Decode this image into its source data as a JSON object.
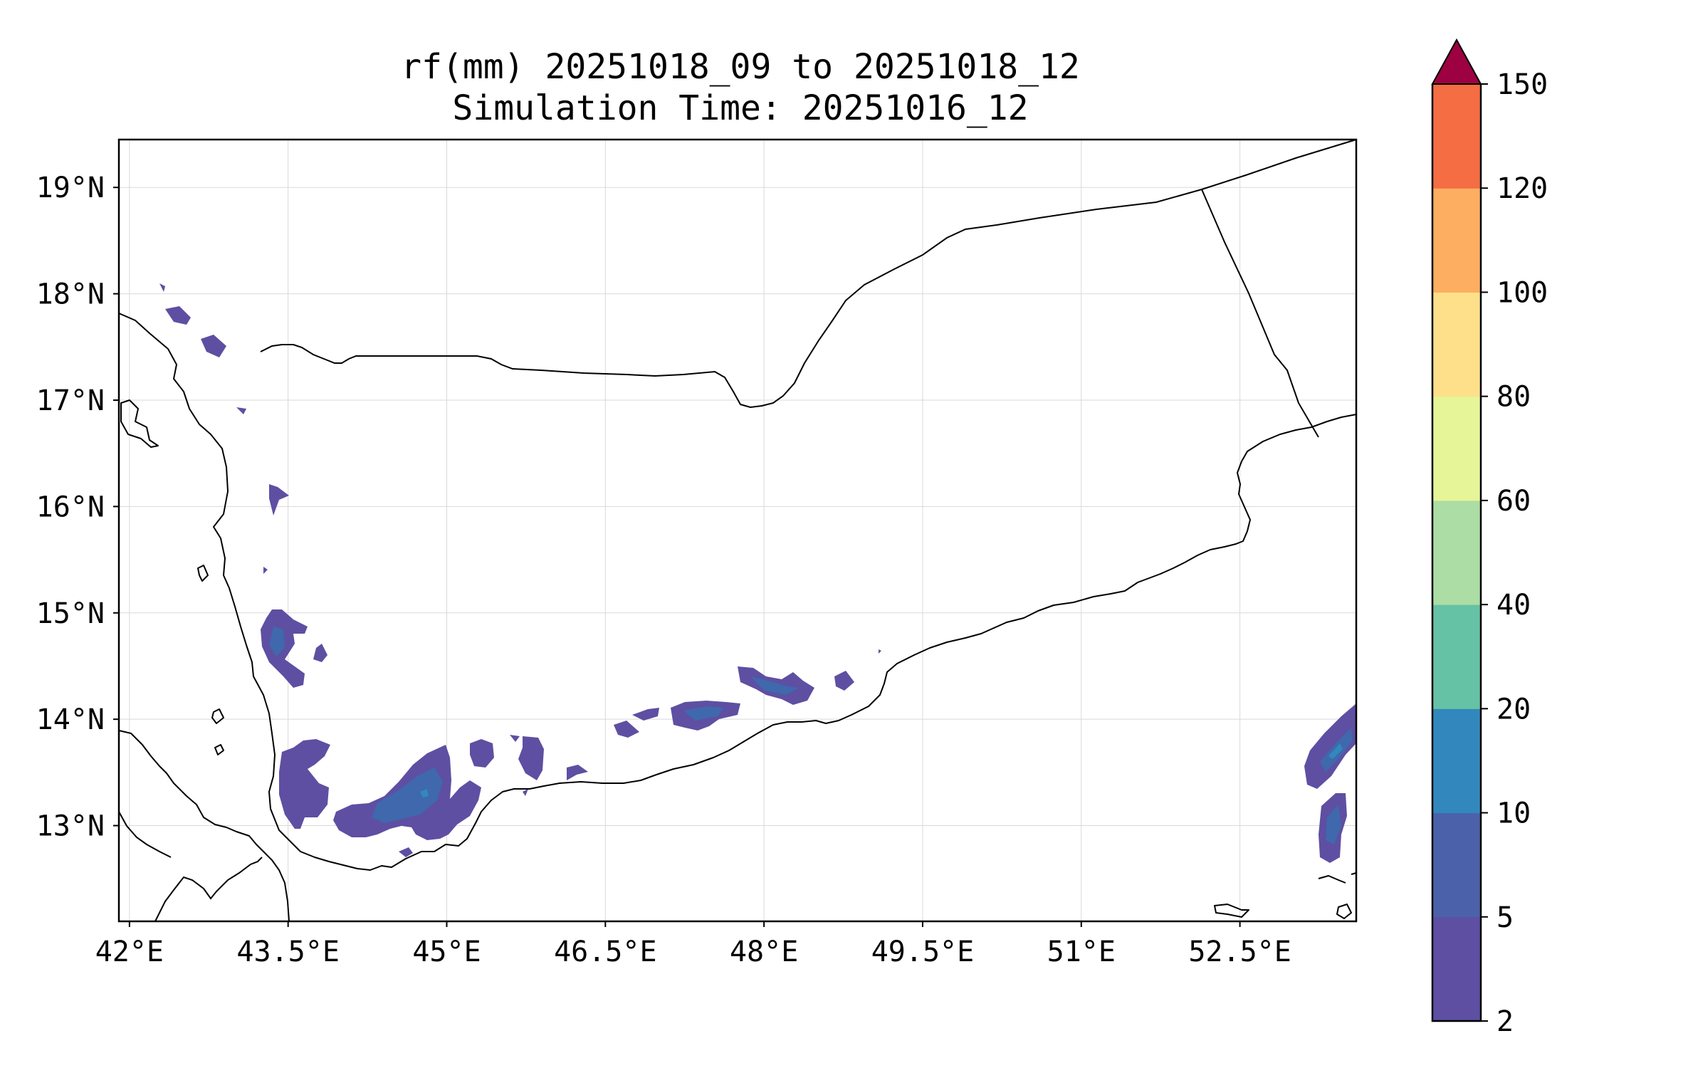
{
  "title": {
    "line1": "rf(mm) 20251018_09 to 20251018_12",
    "line2": "Simulation Time: 20251016_12"
  },
  "axes": {
    "lon_range": [
      41.9,
      53.6
    ],
    "lat_range": [
      12.1,
      19.45
    ],
    "x_ticks": [
      {
        "value": 42.0,
        "label": "42°E"
      },
      {
        "value": 43.5,
        "label": "43.5°E"
      },
      {
        "value": 45.0,
        "label": "45°E"
      },
      {
        "value": 46.5,
        "label": "46.5°E"
      },
      {
        "value": 48.0,
        "label": "48°E"
      },
      {
        "value": 49.5,
        "label": "49.5°E"
      },
      {
        "value": 51.0,
        "label": "51°E"
      },
      {
        "value": 52.5,
        "label": "52.5°E"
      }
    ],
    "y_ticks": [
      {
        "value": 13,
        "label": "13°N"
      },
      {
        "value": 14,
        "label": "14°N"
      },
      {
        "value": 15,
        "label": "15°N"
      },
      {
        "value": 16,
        "label": "16°N"
      },
      {
        "value": 17,
        "label": "17°N"
      },
      {
        "value": 18,
        "label": "18°N"
      },
      {
        "value": 19,
        "label": "19°N"
      }
    ],
    "grid": true
  },
  "colorbar": {
    "levels": [
      {
        "value": 2,
        "label": "2"
      },
      {
        "value": 5,
        "label": "5"
      },
      {
        "value": 10,
        "label": "10"
      },
      {
        "value": 20,
        "label": "20"
      },
      {
        "value": 40,
        "label": "40"
      },
      {
        "value": 60,
        "label": "60"
      },
      {
        "value": 80,
        "label": "80"
      },
      {
        "value": 100,
        "label": "100"
      },
      {
        "value": 120,
        "label": "120"
      },
      {
        "value": 150,
        "label": "150"
      }
    ],
    "colors": [
      "#5e4fa2",
      "#4b62aa",
      "#3288bd",
      "#66c2a5",
      "#abdda4",
      "#e6f598",
      "#fee08b",
      "#fdae61",
      "#f46d43",
      "#d53e4f"
    ],
    "extend_color": "#9e0142",
    "extend": "max"
  }
}
